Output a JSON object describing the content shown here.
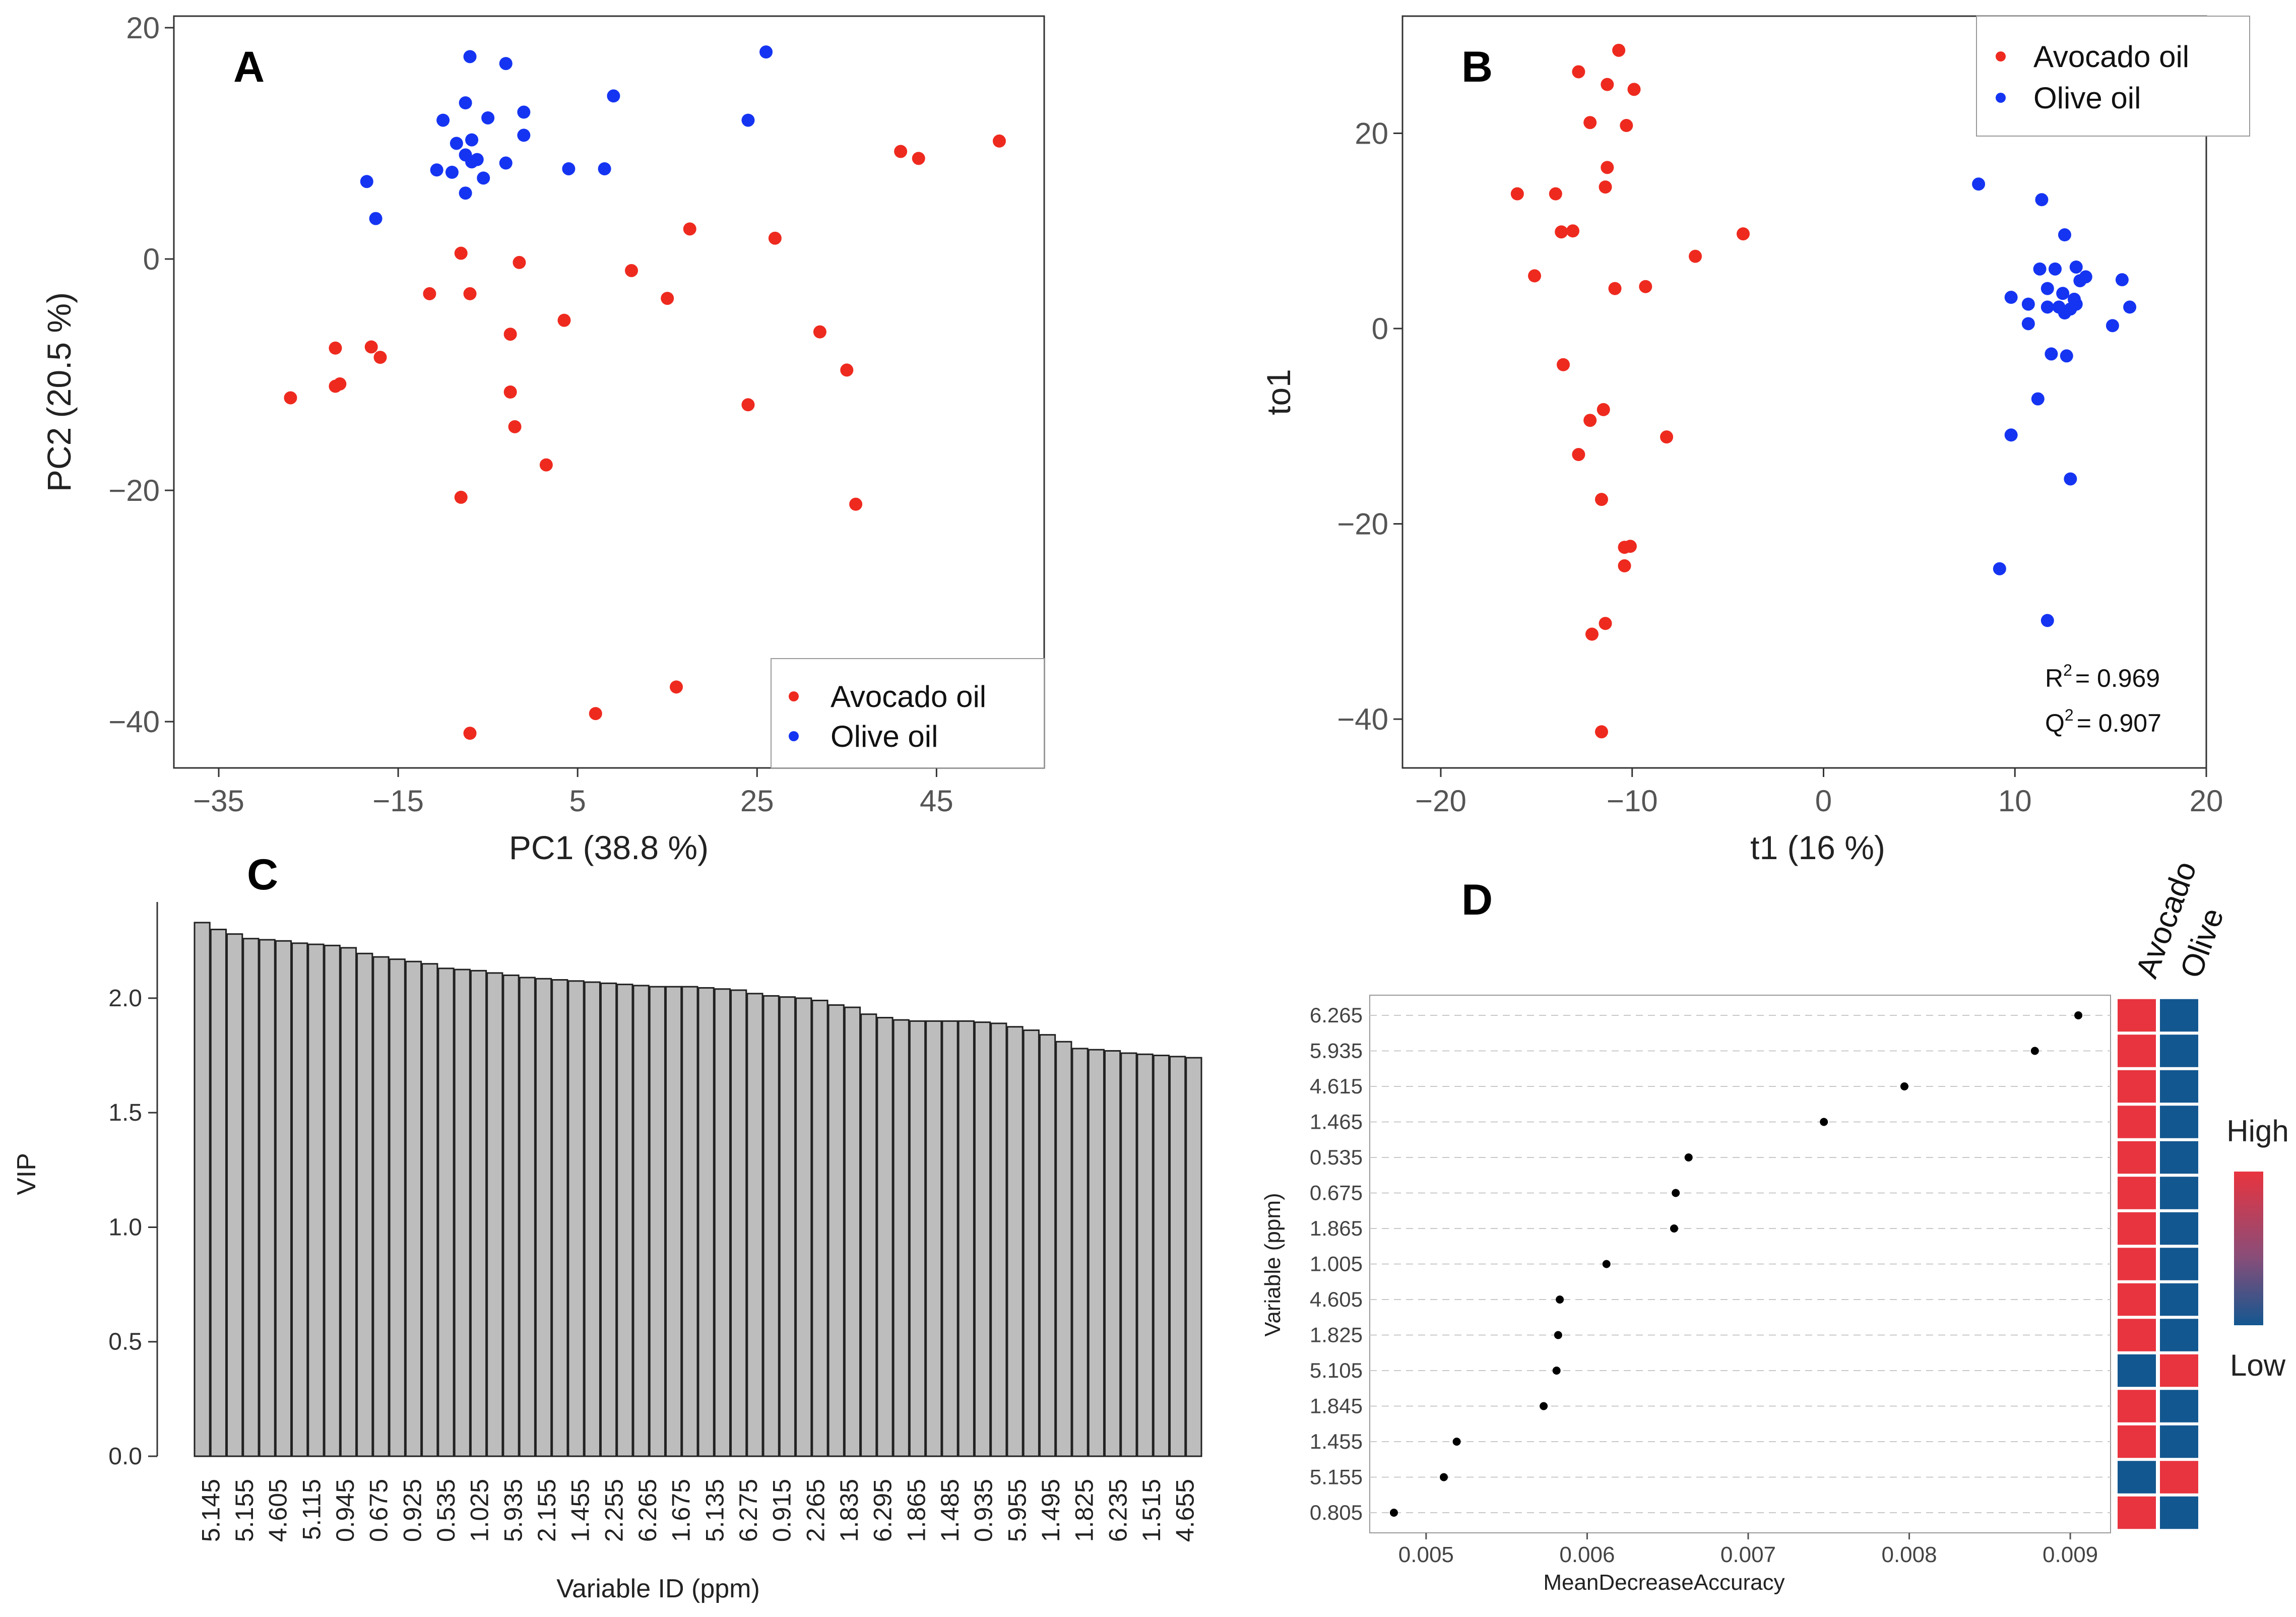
{
  "chart_data": [
    {
      "panel": "A",
      "type": "scatter",
      "title": "",
      "xlabel": "PC1 (38.8 %)",
      "ylabel": "PC2 (20.5 %)",
      "xlim": [
        -40,
        57
      ],
      "ylim": [
        -44,
        21
      ],
      "xticks": [
        -35,
        -15,
        5,
        25,
        45
      ],
      "yticks": [
        20,
        0,
        -20,
        -40
      ],
      "legend_position": "bottom-right",
      "grid": false,
      "series": [
        {
          "name": "Avocado oil",
          "color": "#ee2a1f",
          "points": [
            [
              -27,
              -12
            ],
            [
              -22,
              -11
            ],
            [
              -21.5,
              -10.8
            ],
            [
              -22,
              -7.7
            ],
            [
              -18,
              -7.6
            ],
            [
              -17,
              -8.5
            ],
            [
              -11.5,
              -3
            ],
            [
              -8,
              0.5
            ],
            [
              -7,
              -3
            ],
            [
              -2.5,
              -6.5
            ],
            [
              -2.5,
              -11.5
            ],
            [
              -2,
              -14.5
            ],
            [
              -1.5,
              -0.3
            ],
            [
              1.5,
              -17.8
            ],
            [
              3.5,
              -5.3
            ],
            [
              -8,
              -20.6
            ],
            [
              -7,
              -41
            ],
            [
              7,
              -39.3
            ],
            [
              11,
              -1
            ],
            [
              15,
              -3.4
            ],
            [
              16,
              -37
            ],
            [
              17.5,
              2.6
            ],
            [
              24,
              -12.6
            ],
            [
              27,
              1.8
            ],
            [
              32,
              -6.3
            ],
            [
              35,
              -9.6
            ],
            [
              36,
              -21.2
            ],
            [
              41,
              9.3
            ],
            [
              43,
              8.7
            ],
            [
              52,
              10.2
            ]
          ]
        },
        {
          "name": "Olive oil",
          "color": "#1534f2",
          "points": [
            [
              -7,
              17.5
            ],
            [
              -3,
              16.9
            ],
            [
              -10,
              12
            ],
            [
              -7.5,
              13.5
            ],
            [
              -5,
              12.2
            ],
            [
              -1,
              12.7
            ],
            [
              -1,
              10.7
            ],
            [
              -18.5,
              6.7
            ],
            [
              -17.5,
              3.5
            ],
            [
              -10.7,
              7.7
            ],
            [
              -9,
              7.5
            ],
            [
              -8.5,
              10
            ],
            [
              -7.5,
              9
            ],
            [
              -6.8,
              10.3
            ],
            [
              -6.8,
              8.4
            ],
            [
              -6.2,
              8.6
            ],
            [
              -5.5,
              7
            ],
            [
              -7.5,
              5.7
            ],
            [
              -3,
              8.3
            ],
            [
              4,
              7.8
            ],
            [
              8,
              7.8
            ],
            [
              9,
              14.1
            ],
            [
              24,
              12
            ],
            [
              26,
              17.9
            ]
          ]
        }
      ]
    },
    {
      "panel": "B",
      "type": "scatter",
      "title": "",
      "xlabel": "t1 (16 %)",
      "ylabel": "to1",
      "xlim": [
        -22,
        20
      ],
      "ylim": [
        -45,
        32
      ],
      "xticks": [
        -20,
        -10,
        0,
        10,
        20
      ],
      "yticks": [
        20,
        0,
        -20,
        -40
      ],
      "legend_position": "top-right",
      "grid": false,
      "annotations": {
        "r2_label": "R",
        "r2_value": "= 0.969",
        "q2_label": "Q",
        "q2_value": "= 0.907",
        "superscript": "2"
      },
      "series": [
        {
          "name": "Avocado oil",
          "color": "#ee2a1f",
          "points": [
            [
              -10.7,
              28.5
            ],
            [
              -12.8,
              26.3
            ],
            [
              -11.3,
              25
            ],
            [
              -9.9,
              24.5
            ],
            [
              -12.2,
              21.1
            ],
            [
              -10.3,
              20.8
            ],
            [
              -11.3,
              16.5
            ],
            [
              -11.4,
              14.5
            ],
            [
              -16,
              13.8
            ],
            [
              -14,
              13.8
            ],
            [
              -13.7,
              9.9
            ],
            [
              -13.1,
              10
            ],
            [
              -4.2,
              9.7
            ],
            [
              -6.7,
              7.4
            ],
            [
              -15.1,
              5.4
            ],
            [
              -9.3,
              4.3
            ],
            [
              -10.9,
              4.1
            ],
            [
              -13.6,
              -3.7
            ],
            [
              -11.5,
              -8.3
            ],
            [
              -12.2,
              -9.4
            ],
            [
              -8.2,
              -11.1
            ],
            [
              -12.8,
              -12.9
            ],
            [
              -11.6,
              -17.5
            ],
            [
              -10.4,
              -22.4
            ],
            [
              -10.1,
              -22.3
            ],
            [
              -10.4,
              -24.3
            ],
            [
              -11.4,
              -30.2
            ],
            [
              -12.1,
              -31.3
            ],
            [
              -11.6,
              -41.3
            ]
          ]
        },
        {
          "name": "Olive oil",
          "color": "#1534f2",
          "points": [
            [
              8.1,
              14.8
            ],
            [
              11.4,
              13.2
            ],
            [
              12.6,
              9.6
            ],
            [
              11.3,
              6.1
            ],
            [
              12.1,
              6.1
            ],
            [
              13.2,
              6.3
            ],
            [
              13.7,
              5.3
            ],
            [
              13.4,
              4.9
            ],
            [
              15.6,
              5
            ],
            [
              11.7,
              4.1
            ],
            [
              12.5,
              3.6
            ],
            [
              9.8,
              3.2
            ],
            [
              13.1,
              3
            ],
            [
              16,
              2.2
            ],
            [
              10.7,
              2.5
            ],
            [
              11.7,
              2.2
            ],
            [
              12.3,
              2.2
            ],
            [
              12.9,
              2
            ],
            [
              12.6,
              1.6
            ],
            [
              13.2,
              2.5
            ],
            [
              10.7,
              0.5
            ],
            [
              15.1,
              0.3
            ],
            [
              11.9,
              -2.6
            ],
            [
              12.7,
              -2.8
            ],
            [
              11.2,
              -7.2
            ],
            [
              9.8,
              -10.9
            ],
            [
              12.9,
              -15.4
            ],
            [
              9.2,
              -24.6
            ],
            [
              11.7,
              -29.9
            ]
          ]
        }
      ]
    },
    {
      "panel": "C",
      "type": "bar",
      "title": "",
      "xlabel": "Variable ID (ppm)",
      "ylabel": "VIP",
      "ylim": [
        0,
        2.42
      ],
      "yticks": [
        "0.0",
        "0.5",
        "1.0",
        "1.5",
        "2.0"
      ],
      "tick_labels": [
        "5.145",
        "5.155",
        "4.605",
        "5.115",
        "0.945",
        "0.675",
        "0.925",
        "0.535",
        "1.025",
        "5.935",
        "2.155",
        "1.455",
        "2.255",
        "6.265",
        "1.675",
        "5.135",
        "6.275",
        "0.915",
        "2.265",
        "1.835",
        "6.295",
        "1.865",
        "1.485",
        "0.935",
        "5.955",
        "1.495",
        "1.825",
        "6.235",
        "1.515",
        "4.655"
      ],
      "values": [
        2.33,
        2.3,
        2.28,
        2.26,
        2.255,
        2.25,
        2.24,
        2.235,
        2.23,
        2.22,
        2.195,
        2.18,
        2.17,
        2.16,
        2.15,
        2.13,
        2.125,
        2.12,
        2.11,
        2.1,
        2.09,
        2.085,
        2.08,
        2.075,
        2.07,
        2.065,
        2.06,
        2.055,
        2.05,
        2.05,
        2.05,
        2.045,
        2.04,
        2.035,
        2.02,
        2.01,
        2.005,
        2.0,
        1.99,
        1.97,
        1.96,
        1.93,
        1.915,
        1.905,
        1.9,
        1.9,
        1.9,
        1.9,
        1.895,
        1.89,
        1.875,
        1.86,
        1.84,
        1.81,
        1.78,
        1.775,
        1.77,
        1.76,
        1.755,
        1.75,
        1.745,
        1.74
      ],
      "bar_color": "#bdbdbd"
    },
    {
      "panel": "D",
      "type": "scatter",
      "title": "",
      "xlabel": "MeanDecreaseAccuracy",
      "ylabel": "Variable (ppm)",
      "xlim": [
        0.00465,
        0.00925
      ],
      "xticks": [
        "0.005",
        "0.006",
        "0.007",
        "0.008",
        "0.009"
      ],
      "variables": [
        "6.265",
        "5.935",
        "4.615",
        "1.465",
        "0.535",
        "0.675",
        "1.865",
        "1.005",
        "4.605",
        "1.825",
        "5.105",
        "1.845",
        "1.455",
        "5.155",
        "0.805"
      ],
      "values": [
        0.00905,
        0.00878,
        0.00797,
        0.00747,
        0.00663,
        0.00655,
        0.00654,
        0.00612,
        0.00583,
        0.00582,
        0.00581,
        0.00573,
        0.00519,
        0.00511,
        0.0048
      ],
      "heatmap": {
        "columns": [
          "Avocado",
          "Olive"
        ],
        "levels": [
          [
            "High",
            "Low"
          ],
          [
            "High",
            "Low"
          ],
          [
            "High",
            "Low"
          ],
          [
            "High",
            "Low"
          ],
          [
            "High",
            "Low"
          ],
          [
            "High",
            "Low"
          ],
          [
            "High",
            "Low"
          ],
          [
            "High",
            "Low"
          ],
          [
            "High",
            "Low"
          ],
          [
            "High",
            "Low"
          ],
          [
            "Low",
            "High"
          ],
          [
            "High",
            "Low"
          ],
          [
            "High",
            "Low"
          ],
          [
            "Low",
            "High"
          ],
          [
            "High",
            "Low"
          ]
        ],
        "high_color": "#e8343f",
        "low_color": "#135790",
        "colorbar_high": "High",
        "colorbar_low": "Low"
      }
    }
  ]
}
